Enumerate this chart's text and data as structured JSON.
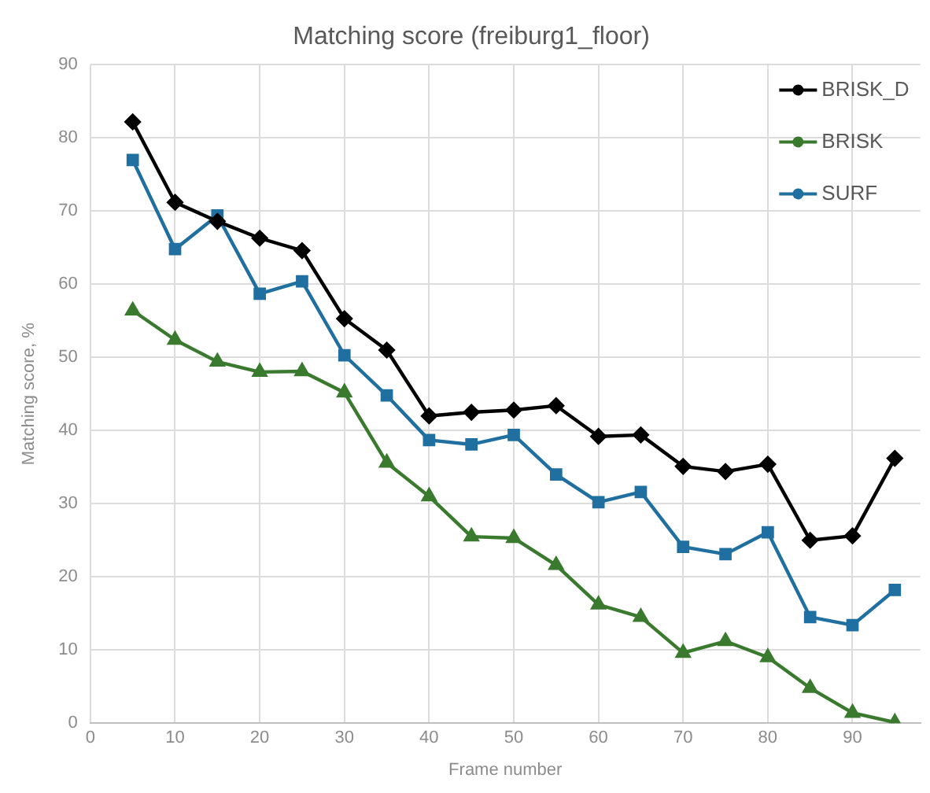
{
  "chart_data": {
    "type": "line",
    "title": "Matching score (freiburg1_floor)",
    "xlabel": "Frame number",
    "ylabel": "Matching score, %",
    "x": [
      5,
      10,
      15,
      20,
      25,
      30,
      35,
      40,
      45,
      50,
      55,
      60,
      65,
      70,
      75,
      80,
      85,
      90,
      95
    ],
    "series": [
      {
        "name": "BRISK_D",
        "color": "#000000",
        "marker": "diamond",
        "values": [
          82.2,
          71.2,
          68.6,
          66.3,
          64.6,
          55.3,
          51,
          42,
          42.5,
          42.8,
          43.4,
          39.2,
          39.4,
          35.1,
          34.4,
          35.4,
          25,
          25.6,
          36.2
        ]
      },
      {
        "name": "BRISK",
        "color": "#3a7a2e",
        "marker": "triangle",
        "values": [
          56.4,
          52.4,
          49.4,
          48,
          48.1,
          45.2,
          35.6,
          31,
          25.5,
          25.3,
          21.6,
          16.2,
          14.5,
          9.6,
          11.2,
          9,
          4.8,
          1.4,
          0.1
        ]
      },
      {
        "name": "SURF",
        "color": "#1f6fa0",
        "marker": "square",
        "values": [
          77,
          64.8,
          69.4,
          58.7,
          60.4,
          50.3,
          44.8,
          38.7,
          38.1,
          39.4,
          34,
          30.2,
          31.6,
          24.1,
          23.1,
          26.1,
          14.5,
          13.4,
          18.2
        ]
      }
    ],
    "xlim": [
      0,
      98
    ],
    "xticks": [
      0,
      10,
      20,
      30,
      40,
      50,
      60,
      70,
      80,
      90
    ],
    "ylim": [
      0,
      90
    ],
    "yticks": [
      0,
      10,
      20,
      30,
      40,
      50,
      60,
      70,
      80,
      90
    ],
    "grid": true,
    "legend": "top right"
  }
}
